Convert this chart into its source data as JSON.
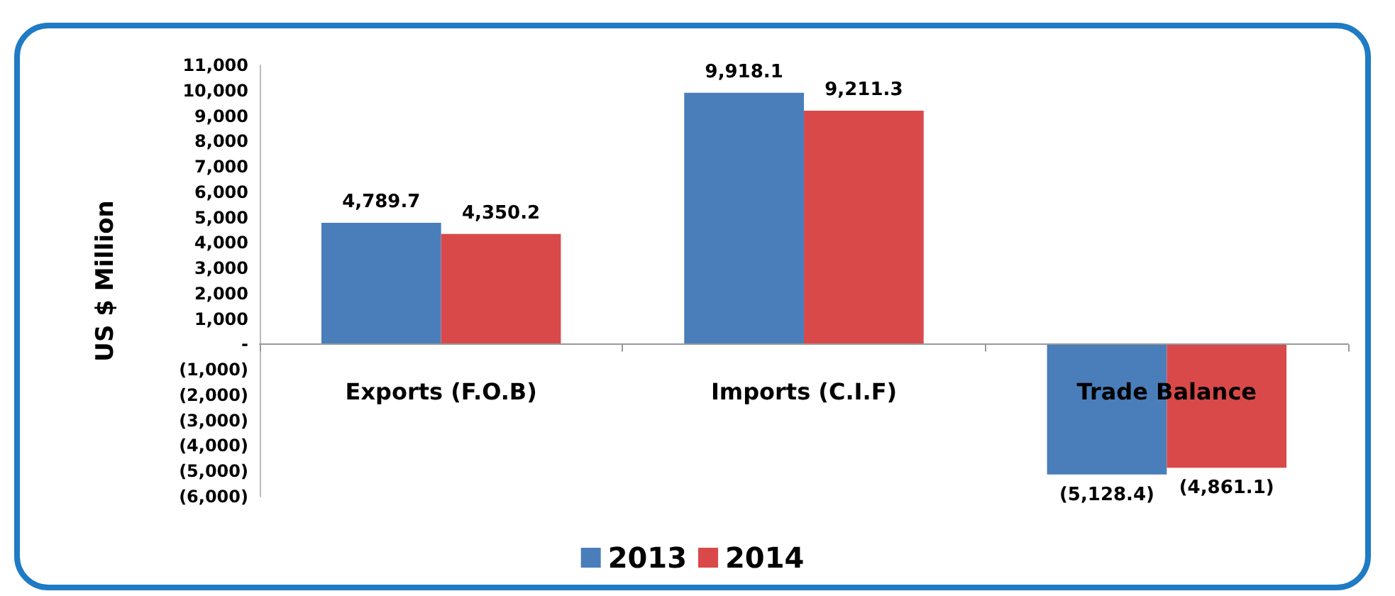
{
  "chart_data": {
    "type": "bar",
    "ylabel": "US $ Million",
    "categories": [
      "Exports (F.O.B)",
      "Imports (C.I.F)",
      "Trade Balance"
    ],
    "series": [
      {
        "name": "2013",
        "color": "#4a7ebb",
        "values": [
          4789.7,
          9918.1,
          -5128.4
        ],
        "value_labels": [
          "4,789.7",
          "9,918.1",
          "(5,128.4)"
        ]
      },
      {
        "name": "2014",
        "color": "#d9494a",
        "values": [
          4350.2,
          9211.3,
          -4861.1
        ],
        "value_labels": [
          "4,350.2",
          "9,211.3",
          "(4,861.1)"
        ]
      }
    ],
    "ylim": [
      -6000,
      11000
    ],
    "yticks": [
      {
        "value": -6000,
        "label": "(6,000)"
      },
      {
        "value": -5000,
        "label": "(5,000)"
      },
      {
        "value": -4000,
        "label": "(4,000)"
      },
      {
        "value": -3000,
        "label": "(3,000)"
      },
      {
        "value": -2000,
        "label": "(2,000)"
      },
      {
        "value": -1000,
        "label": "(1,000)"
      },
      {
        "value": 0,
        "label": "-"
      },
      {
        "value": 1000,
        "label": "1,000"
      },
      {
        "value": 2000,
        "label": "2,000"
      },
      {
        "value": 3000,
        "label": "3,000"
      },
      {
        "value": 4000,
        "label": "4,000"
      },
      {
        "value": 5000,
        "label": "5,000"
      },
      {
        "value": 6000,
        "label": "6,000"
      },
      {
        "value": 7000,
        "label": "7,000"
      },
      {
        "value": 8000,
        "label": "8,000"
      },
      {
        "value": 9000,
        "label": "9,000"
      },
      {
        "value": 10000,
        "label": "10,000"
      },
      {
        "value": 11000,
        "label": "11,000"
      }
    ],
    "grid": false,
    "legend": "bottom"
  }
}
